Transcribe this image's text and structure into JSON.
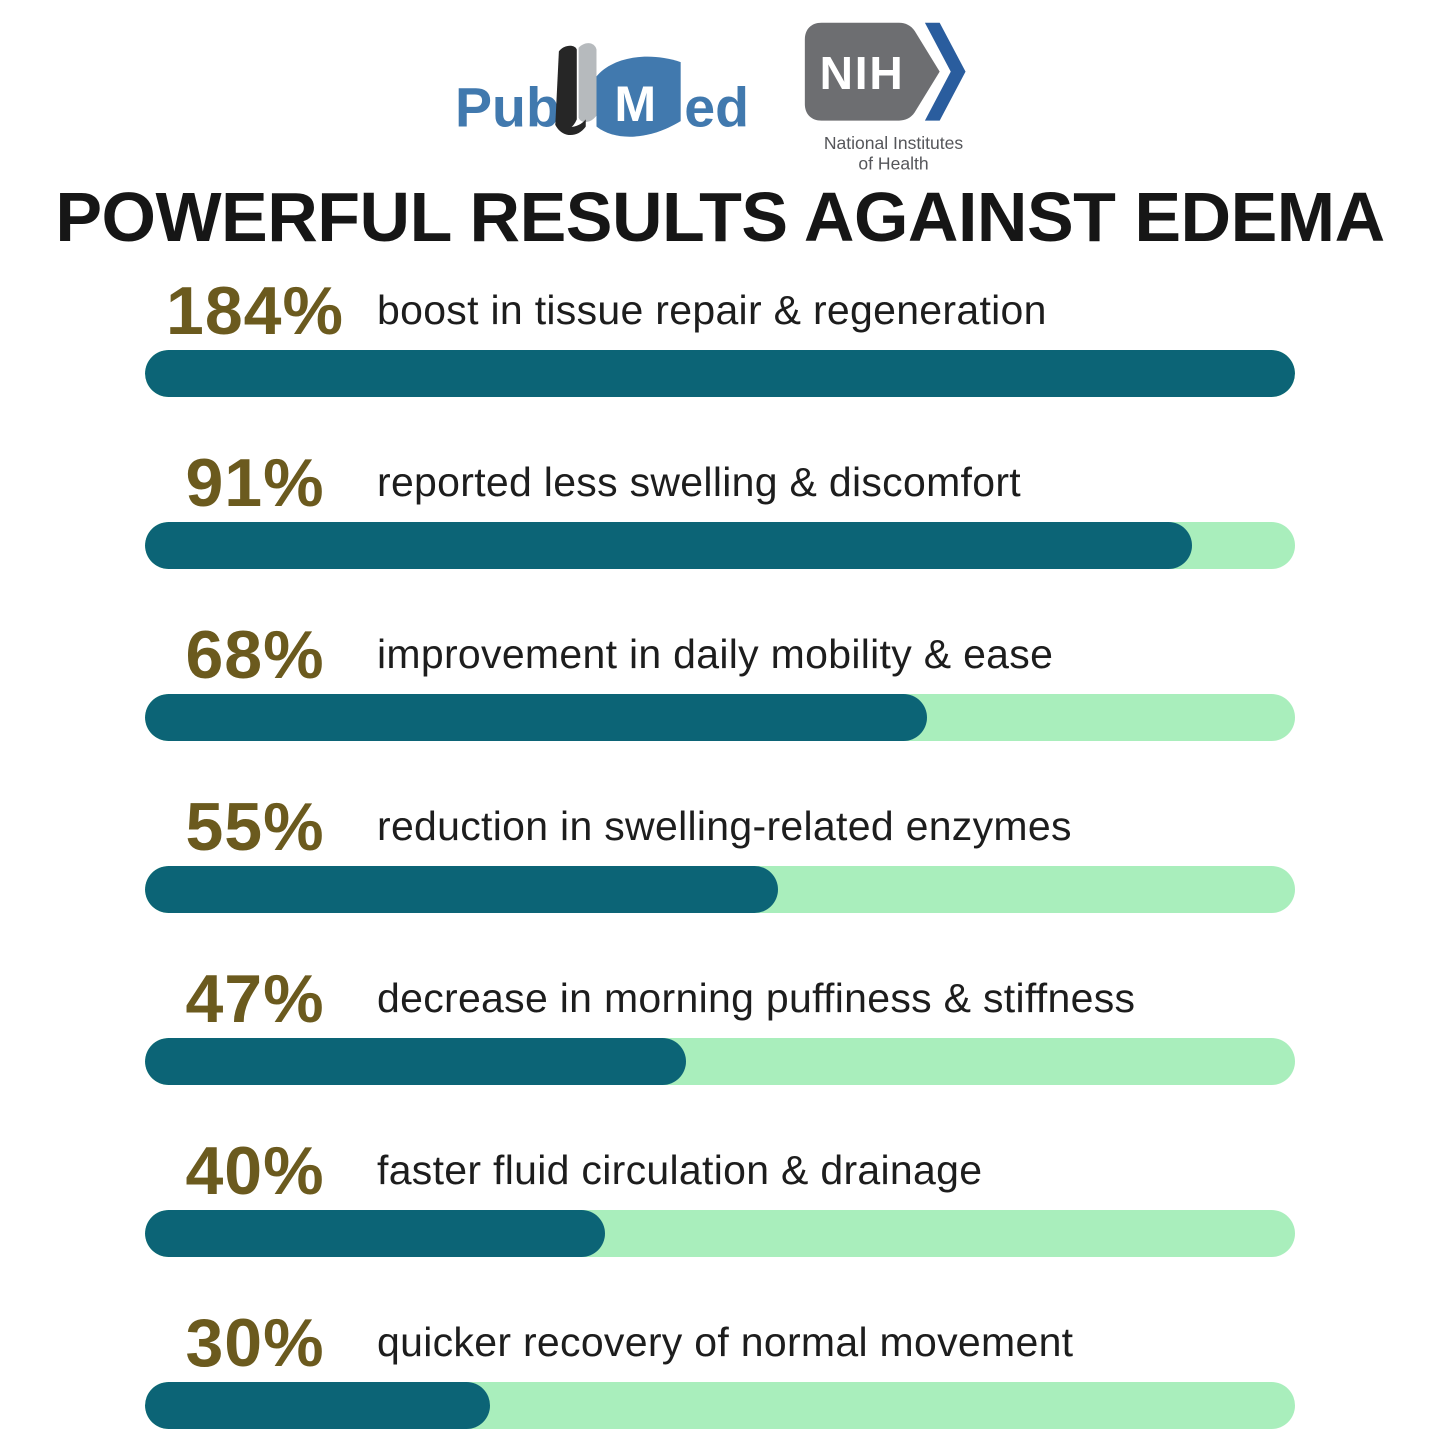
{
  "header": {
    "pubmed": {
      "part1": "Pub",
      "part2": "M",
      "part3": "ed"
    },
    "nih": {
      "acronym": "NIH",
      "caption_line1": "National Institutes",
      "caption_line2": "of Health"
    }
  },
  "title": "POWERFUL RESULTS AGAINST EDEMA",
  "colors": {
    "bar_fill": "#0c6476",
    "bar_track": "#a9eebc",
    "percent_text": "#6b5a1e",
    "title_text": "#161616",
    "desc_text": "#1d1d1d",
    "pubmed_blue": "#4179ae",
    "nih_gray": "#6d6e71",
    "nih_blue": "#2a5d9e"
  },
  "chart_data": {
    "type": "bar",
    "orientation": "horizontal",
    "title": "POWERFUL RESULTS AGAINST EDEMA",
    "categories": [
      "boost in tissue repair & regeneration",
      "reported less swelling & discomfort",
      "improvement in daily mobility & ease",
      "reduction in swelling-related enzymes",
      "decrease in morning puffiness & stiffness",
      "faster fluid circulation & drainage",
      "quicker recovery of normal movement"
    ],
    "values": [
      184,
      91,
      68,
      55,
      47,
      40,
      30
    ],
    "unit": "%",
    "bar_fill_percent": [
      100,
      91,
      68,
      55,
      47,
      40,
      30
    ],
    "xlim": [
      0,
      100
    ],
    "grid": false,
    "legend": false
  },
  "rows": [
    {
      "percent": "184%",
      "label": "boost in tissue repair & regeneration",
      "fill_percent": 100
    },
    {
      "percent": "91%",
      "label": "reported less swelling & discomfort",
      "fill_percent": 91
    },
    {
      "percent": "68%",
      "label": "improvement in daily mobility & ease",
      "fill_percent": 68
    },
    {
      "percent": "55%",
      "label": "reduction in swelling-related enzymes",
      "fill_percent": 55
    },
    {
      "percent": "47%",
      "label": "decrease in morning puffiness & stiffness",
      "fill_percent": 47
    },
    {
      "percent": "40%",
      "label": "faster fluid circulation & drainage",
      "fill_percent": 40
    },
    {
      "percent": "30%",
      "label": "quicker recovery of normal movement",
      "fill_percent": 30
    }
  ]
}
